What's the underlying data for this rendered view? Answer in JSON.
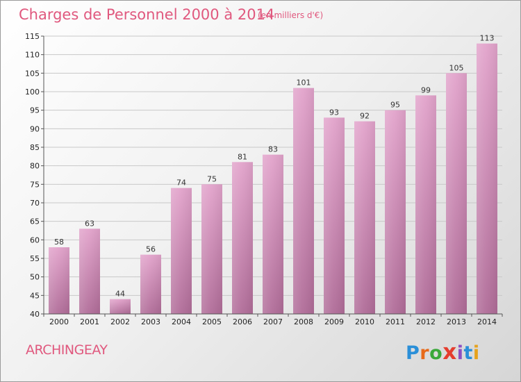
{
  "chart_data": {
    "type": "bar",
    "title": "Charges de Personnel 2000 à 2014",
    "subtitle": "(en milliers d'€)",
    "categories": [
      "2000",
      "2001",
      "2002",
      "2003",
      "2004",
      "2005",
      "2006",
      "2007",
      "2008",
      "2009",
      "2010",
      "2011",
      "2012",
      "2013",
      "2014"
    ],
    "values": [
      58,
      63,
      44,
      56,
      74,
      75,
      81,
      83,
      101,
      93,
      92,
      95,
      99,
      105,
      113
    ],
    "ylim": [
      40,
      115
    ],
    "yticks": [
      40,
      45,
      50,
      55,
      60,
      65,
      70,
      75,
      80,
      85,
      90,
      95,
      100,
      105,
      110,
      115
    ],
    "grid": true,
    "bar_color": "#d785b4"
  },
  "commune": "ARCHINGEAY",
  "logo": {
    "letters": [
      "P",
      "r",
      "o",
      "x",
      "i",
      "t",
      "i"
    ],
    "colors": [
      "#2a8fd8",
      "#e86a1a",
      "#3aa83a",
      "#e53d2e",
      "#8d4fc2",
      "#2a8fd8",
      "#e6a21d"
    ]
  }
}
